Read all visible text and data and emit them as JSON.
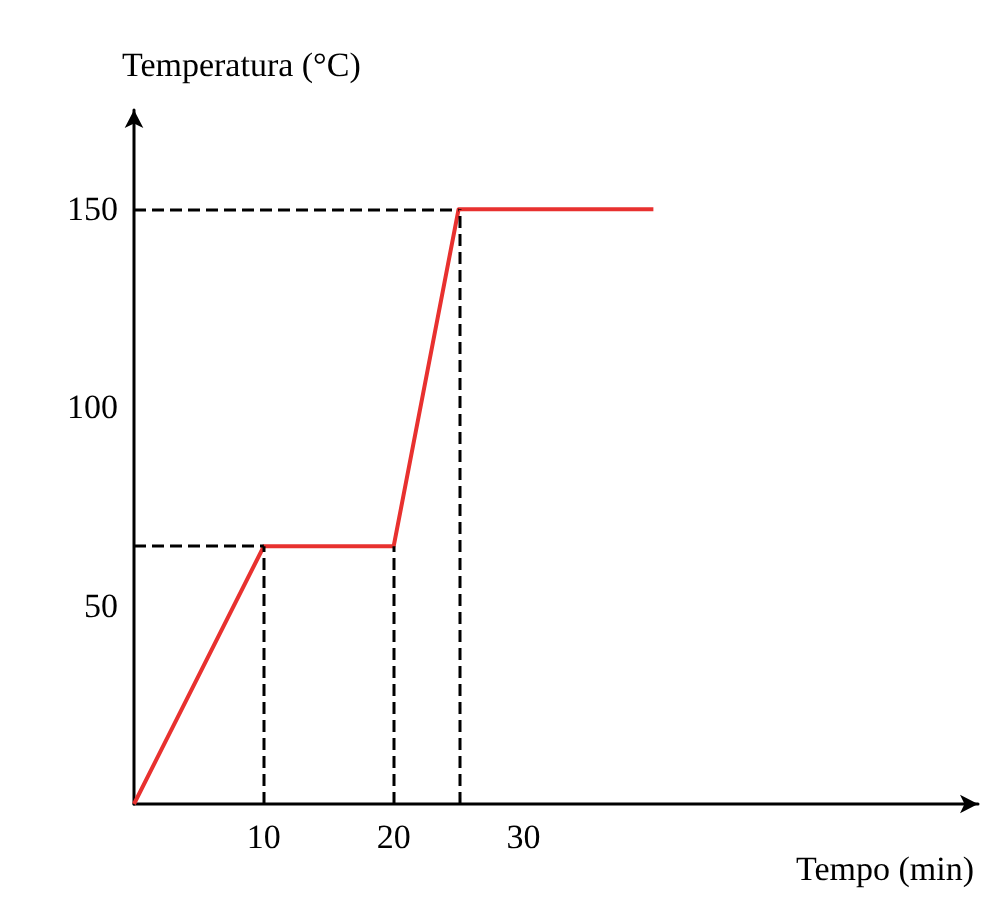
{
  "chart_data": {
    "type": "line",
    "xlabel": "Tempo (min)",
    "ylabel": "Temperatura (°C)",
    "x": [
      0,
      10,
      20,
      25,
      40
    ],
    "values": [
      0,
      65,
      65,
      150,
      150
    ],
    "color": "#e8312f",
    "xlim": [
      0,
      65
    ],
    "ylim": [
      0,
      175
    ],
    "xticks": [
      10,
      20,
      30
    ],
    "yticks": [
      50,
      100,
      150
    ],
    "ref_lines": [
      {
        "axis": "y",
        "value": 65,
        "color": "#000000",
        "line_style": "dashed"
      },
      {
        "axis": "y",
        "value": 150,
        "color": "#000000",
        "line_style": "dashed"
      },
      {
        "axis": "x",
        "value": 10,
        "color": "#000000",
        "line_style": "dashed"
      },
      {
        "axis": "x",
        "value": 20,
        "color": "#000000",
        "line_style": "dashed"
      },
      {
        "axis": "x",
        "value": 25,
        "color": "#000000",
        "line_style": "dashed"
      }
    ],
    "grid": false,
    "marker": "none",
    "line_style": "solid"
  }
}
